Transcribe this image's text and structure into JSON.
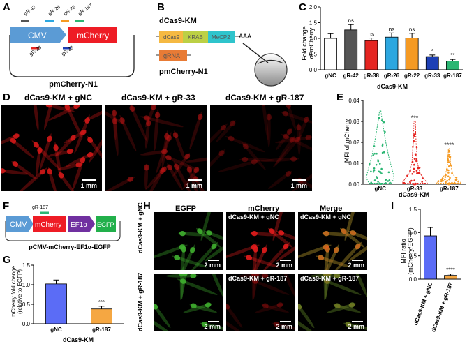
{
  "panels": {
    "A": "A",
    "B": "B",
    "C": "C",
    "D": "D",
    "E": "E",
    "F": "F",
    "G": "G",
    "H": "H",
    "I": "I"
  },
  "panelA": {
    "promoter": "CMV",
    "gene": "mCherry",
    "plasmid": "pmCherry-N1",
    "guides_top": [
      "gR-42",
      "gR-26",
      "gR-22",
      "gR-187"
    ],
    "guides_bottom": [
      "gR-38",
      "gR-33"
    ],
    "guide_colors": {
      "gR-42": "#555555",
      "gR-26": "#2ca7e0",
      "gR-22": "#f59a23",
      "gR-187": "#2bb673",
      "gR-38": "#e52521",
      "gR-33": "#1d3fb5"
    }
  },
  "panelB": {
    "title": "dCas9-KM",
    "segments": [
      "dCas9",
      "KRAB",
      "MeCP2"
    ],
    "polyA": "AAA",
    "grna": "gRNA",
    "plasmid": "pmCherry-N1"
  },
  "panelC": {
    "ylabel": "Fold change\nof mCherry",
    "xtitle": "dCas9-KM",
    "yticks": [
      "0.0",
      "0.5",
      "1.0",
      "1.5",
      "2.0"
    ],
    "chart_data": {
      "type": "bar",
      "categories": [
        "gNC",
        "gR-42",
        "gR-38",
        "gR-26",
        "gR-22",
        "gR-33",
        "gR-187"
      ],
      "values": [
        1.0,
        1.27,
        0.93,
        1.04,
        1.01,
        0.42,
        0.28
      ],
      "errors": [
        0.15,
        0.17,
        0.08,
        0.13,
        0.15,
        0.05,
        0.05
      ],
      "colors": [
        "#ffffff",
        "#555555",
        "#e52521",
        "#2ca7e0",
        "#f59a23",
        "#1d3fb5",
        "#2bb673"
      ],
      "significance": [
        "",
        "ns",
        "ns",
        "ns",
        "ns",
        "*",
        "**"
      ],
      "ylim": [
        0,
        2.0
      ]
    }
  },
  "panelD": {
    "labels": [
      "dCas9-KM + gNC",
      "dCas9-KM + gR-33",
      "dCas9-KM + gR-187"
    ],
    "scale": "1 mm"
  },
  "panelE": {
    "ylabel": "MFI of mCherry",
    "xtitle": "dCas9-KM",
    "yticks": [
      "0.00",
      "0.01",
      "0.02",
      "0.03",
      "0.04"
    ],
    "chart_data": {
      "type": "violin",
      "categories": [
        "gNC",
        "gR-33",
        "gR-187"
      ],
      "colors": [
        "#2bb673",
        "#e52521",
        "#f59a23"
      ],
      "significance": [
        "",
        "***",
        "****"
      ],
      "ylim": [
        0,
        0.04
      ]
    }
  },
  "panelF": {
    "promoter": "CMV",
    "gene": "mCherry",
    "promoter2": "EF1α",
    "gene2": "EGFP",
    "guide": "gR-187",
    "plasmid": "pCMV-mCherry-EF1α-EGFP"
  },
  "panelG": {
    "ylabel": "mCherry fold change\n(relative to EGFP)",
    "xtitle": "dCas9-KM",
    "yticks": [
      "0.0",
      "0.5",
      "1.0",
      "1.5"
    ],
    "chart_data": {
      "type": "bar",
      "categories": [
        "gNC",
        "gR-187"
      ],
      "values": [
        1.02,
        0.38
      ],
      "errors": [
        0.1,
        0.07
      ],
      "colors": [
        "#5b6cf6",
        "#f5a742"
      ],
      "significance": [
        "",
        "***"
      ],
      "ylim": [
        0,
        1.5
      ]
    }
  },
  "panelH": {
    "col_headers": [
      "EGFP",
      "mCherry",
      "Merge"
    ],
    "row_labels": [
      "dCas9-KM + gNC",
      "dCas9-KM + gR-187"
    ],
    "overlay_gNC": "dCas9-KM + gNC",
    "overlay_g187": "dCas9-KM + gR-187",
    "scale": "2 mm"
  },
  "panelI": {
    "ylabel": "MFI ratio\n(mCherry/EGFP)",
    "yticks": [
      "0.0",
      "0.5",
      "1.0",
      "1.5"
    ],
    "chart_data": {
      "type": "bar",
      "categories": [
        "dCas9-KM + gNC",
        "dCas9-KM + gR-187"
      ],
      "values": [
        0.93,
        0.08
      ],
      "errors": [
        0.18,
        0.03
      ],
      "colors": [
        "#5b6cf6",
        "#f5a742"
      ],
      "significance": [
        "",
        "****"
      ],
      "ylim": [
        0,
        1.5
      ]
    }
  }
}
